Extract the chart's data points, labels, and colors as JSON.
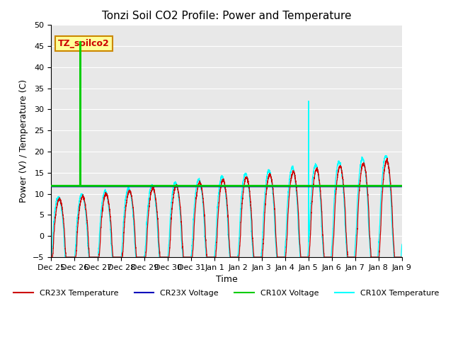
{
  "title": "Tonzi Soil CO2 Profile: Power and Temperature",
  "ylabel": "Power (V) / Temperature (C)",
  "xlabel": "Time",
  "ylim": [
    -5,
    50
  ],
  "yticks": [
    -5,
    0,
    5,
    10,
    15,
    20,
    25,
    30,
    35,
    40,
    45,
    50
  ],
  "plot_bg_color": "#e8e8e8",
  "grid_color": "white",
  "annotation_text": "TZ_soilco2",
  "annotation_bg": "#ffff99",
  "annotation_border": "#cc8800",
  "cr23x_voltage_value": 11.8,
  "cr10x_voltage_value": 11.9,
  "x_tick_labels": [
    "Dec 25",
    "Dec 26",
    "Dec 27",
    "Dec 28",
    "Dec 29",
    "Dec 30",
    "Dec 31",
    "Jan 1",
    "Jan 2",
    "Jan 3",
    "Jan 4",
    "Jan 5",
    "Jan 6",
    "Jan 7",
    "Jan 8",
    "Jan 9"
  ],
  "num_days": 15
}
